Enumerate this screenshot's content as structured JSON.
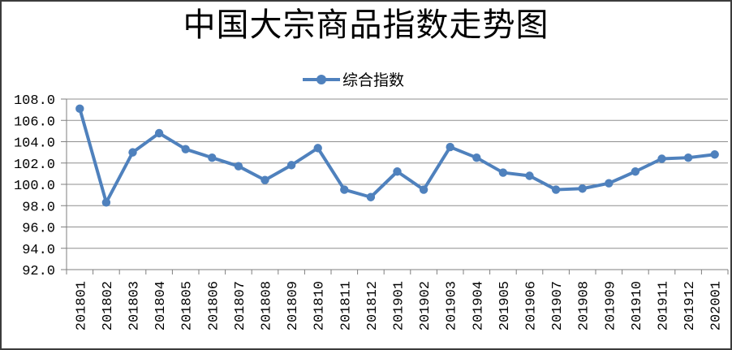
{
  "chart_data": {
    "type": "line",
    "title": "中国大宗商品指数走势图",
    "xlabel": "",
    "ylabel": "",
    "legend_position": "top",
    "grid": "horizontal",
    "ylim": [
      92.0,
      108.0
    ],
    "ytick_step": 2.0,
    "ytick_labels": [
      "108.0",
      "106.0",
      "104.0",
      "102.0",
      "100.0",
      "98.0",
      "96.0",
      "94.0",
      "92.0"
    ],
    "categories": [
      "201801",
      "201802",
      "201803",
      "201804",
      "201805",
      "201806",
      "201807",
      "201808",
      "201809",
      "201810",
      "201811",
      "201812",
      "201901",
      "201902",
      "201903",
      "201904",
      "201905",
      "201906",
      "201907",
      "201908",
      "201909",
      "201910",
      "201911",
      "201912",
      "202001"
    ],
    "series": [
      {
        "name": "综合指数",
        "marker": "circle",
        "values": [
          107.1,
          98.3,
          103.0,
          104.8,
          103.3,
          102.5,
          101.7,
          100.4,
          101.8,
          103.4,
          99.5,
          98.8,
          101.2,
          99.5,
          103.5,
          102.5,
          101.1,
          100.8,
          99.5,
          99.6,
          100.1,
          101.2,
          102.4,
          102.5,
          102.8
        ]
      }
    ],
    "colors": {
      "line": "#4f81bd",
      "marker": "#4f81bd",
      "grid": "#8f8f8f",
      "axis": "#7f7f7f",
      "text": "#000000",
      "border": "#3c3c3c"
    }
  }
}
